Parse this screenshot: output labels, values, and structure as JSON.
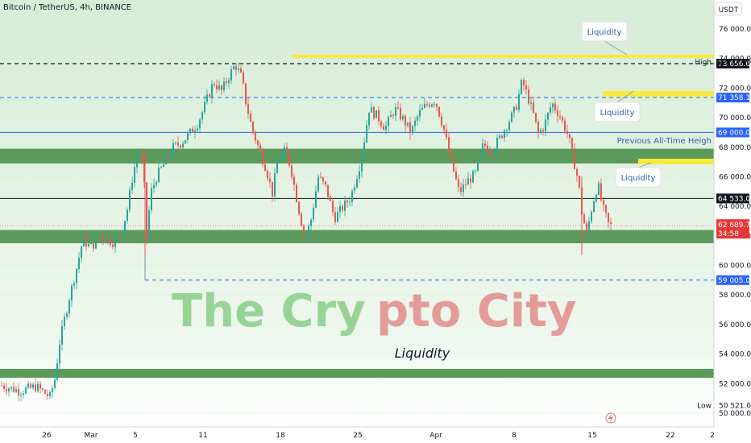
{
  "header": {
    "title": "Bitcoin / TetherUS, 4h, BINANCE"
  },
  "currency": "USDT",
  "chart_data": {
    "type": "candlestick",
    "title": "Bitcoin / TetherUS, 4h, BINANCE",
    "ylim": [
      50000,
      77500
    ],
    "x_ticks": [
      "26",
      "Mar",
      "5",
      "11",
      "18",
      "25",
      "Apr",
      "8",
      "15",
      "22",
      "2"
    ],
    "y_ticks": [
      "50 000.00",
      "52 000.00",
      "54 000.00",
      "56 000.00",
      "58 000.00",
      "60 000.00",
      "62 000.00",
      "64 000.00",
      "66 000.00",
      "68 000.00",
      "70 000.00",
      "72 000.00",
      "74 000.00",
      "76 000.00"
    ],
    "close_path": [
      [
        0,
        51900
      ],
      [
        25,
        51500
      ],
      [
        45,
        51800
      ],
      [
        62,
        51100
      ],
      [
        68,
        52300
      ],
      [
        74,
        54800
      ],
      [
        85,
        57600
      ],
      [
        95,
        59800
      ],
      [
        103,
        61800
      ],
      [
        112,
        61200
      ],
      [
        125,
        62000
      ],
      [
        140,
        61600
      ],
      [
        150,
        62100
      ],
      [
        158,
        63800
      ],
      [
        165,
        66200
      ],
      [
        172,
        67800
      ],
      [
        178,
        66400
      ],
      [
        182,
        61900
      ],
      [
        187,
        64900
      ],
      [
        195,
        66100
      ],
      [
        205,
        67000
      ],
      [
        215,
        68000
      ],
      [
        225,
        68300
      ],
      [
        235,
        68900
      ],
      [
        245,
        69600
      ],
      [
        252,
        70500
      ],
      [
        258,
        71400
      ],
      [
        265,
        72400
      ],
      [
        275,
        71800
      ],
      [
        285,
        72900
      ],
      [
        292,
        73600
      ],
      [
        300,
        72700
      ],
      [
        305,
        71100
      ],
      [
        312,
        69400
      ],
      [
        320,
        68100
      ],
      [
        330,
        66600
      ],
      [
        338,
        64900
      ],
      [
        345,
        67200
      ],
      [
        355,
        67800
      ],
      [
        362,
        66300
      ],
      [
        370,
        64000
      ],
      [
        378,
        61900
      ],
      [
        385,
        62800
      ],
      [
        395,
        66000
      ],
      [
        405,
        65200
      ],
      [
        415,
        63200
      ],
      [
        425,
        63900
      ],
      [
        435,
        64600
      ],
      [
        448,
        67100
      ],
      [
        458,
        70600
      ],
      [
        468,
        70100
      ],
      [
        478,
        69300
      ],
      [
        490,
        70600
      ],
      [
        500,
        69900
      ],
      [
        510,
        69000
      ],
      [
        520,
        70300
      ],
      [
        530,
        70900
      ],
      [
        540,
        71200
      ],
      [
        550,
        69400
      ],
      [
        560,
        67000
      ],
      [
        570,
        64900
      ],
      [
        580,
        65700
      ],
      [
        590,
        66200
      ],
      [
        600,
        68200
      ],
      [
        610,
        67800
      ],
      [
        620,
        68600
      ],
      [
        630,
        69600
      ],
      [
        640,
        70600
      ],
      [
        648,
        72500
      ],
      [
        655,
        71400
      ],
      [
        662,
        70200
      ],
      [
        668,
        68900
      ],
      [
        675,
        69400
      ],
      [
        685,
        71000
      ],
      [
        695,
        70100
      ],
      [
        705,
        68800
      ],
      [
        712,
        67100
      ],
      [
        718,
        65600
      ],
      [
        722,
        63600
      ],
      [
        728,
        62100
      ],
      [
        735,
        64100
      ],
      [
        742,
        65500
      ],
      [
        748,
        63900
      ],
      [
        755,
        62800
      ],
      [
        758,
        62690
      ]
    ],
    "levels": [
      {
        "name": "high",
        "price": 73656.63,
        "label": "73 656.63",
        "style": "black-dashed"
      },
      {
        "name": "liquidity-high",
        "price": 71358.11,
        "label": "71 358.11",
        "style": "blue-dashed"
      },
      {
        "name": "previous-ath",
        "price": 69000.0,
        "label": "69 000.00",
        "style": "blue-solid"
      },
      {
        "name": "support",
        "price": 64533.0,
        "label": "64 533.00",
        "style": "black-solid"
      },
      {
        "name": "liquidity-low",
        "price": 59005.0,
        "label": "59 005.00",
        "style": "blue-dashed"
      }
    ],
    "zones": [
      {
        "name": "zone-67500",
        "low": 66900,
        "high": 67900
      },
      {
        "name": "zone-62000",
        "low": 61500,
        "high": 62400
      },
      {
        "name": "zone-52500",
        "low": 52400,
        "high": 53000
      }
    ],
    "current_price": {
      "label": "62 689.73",
      "countdown": "34:58"
    },
    "high_label": {
      "text": "High",
      "value": "73 777.00"
    },
    "low_label": {
      "text": "Low",
      "value": "50 521.00"
    }
  },
  "annotations": {
    "liquidity_labels": [
      "Liquidity",
      "Liquidity",
      "Liquidity"
    ],
    "liquidity_text": "Liquidity",
    "previous_ath": "Previous All-Time Heigh"
  },
  "watermark": {
    "part1": "The Cry",
    "part2": "pto City"
  },
  "colors": {
    "bg_green": "#d6edd6",
    "zone": "#5b9a5b",
    "candle_up": "#26a69a",
    "candle_down": "#ef5350",
    "liquidity_bar": "#f7ea3d",
    "level_blue": "#2962ff",
    "current_red": "#e53935"
  }
}
